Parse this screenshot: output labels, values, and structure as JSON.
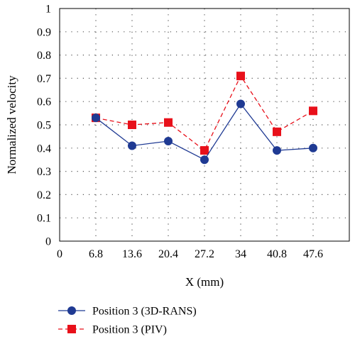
{
  "chart_data": {
    "type": "line",
    "xlabel": "X (mm)",
    "ylabel": "Normalized velocity",
    "x_ticks": [
      "0",
      "6.8",
      "13.6",
      "20.4",
      "27.2",
      "34",
      "40.8",
      "47.6"
    ],
    "x": [
      6.8,
      13.6,
      20.4,
      27.2,
      34,
      40.8,
      47.6
    ],
    "xlim": [
      0,
      54.4
    ],
    "y_ticks": [
      "0",
      "0.1",
      "0.2",
      "0.3",
      "0.4",
      "0.5",
      "0.6",
      "0.7",
      "0.8",
      "0.9",
      "1"
    ],
    "ylim": [
      0,
      1
    ],
    "grid": true,
    "legend_position": "bottom",
    "series": [
      {
        "name": "Position 3 (3D-RANS)",
        "values": [
          0.53,
          0.41,
          0.43,
          0.35,
          0.59,
          0.39,
          0.4
        ],
        "color": "#1f3a93",
        "marker": "circle",
        "line_style": "solid"
      },
      {
        "name": "Position 3 (PIV)",
        "values": [
          0.53,
          0.5,
          0.51,
          0.39,
          0.71,
          0.47,
          0.56
        ],
        "color": "#e8101a",
        "marker": "square",
        "line_style": "dashed"
      }
    ]
  }
}
